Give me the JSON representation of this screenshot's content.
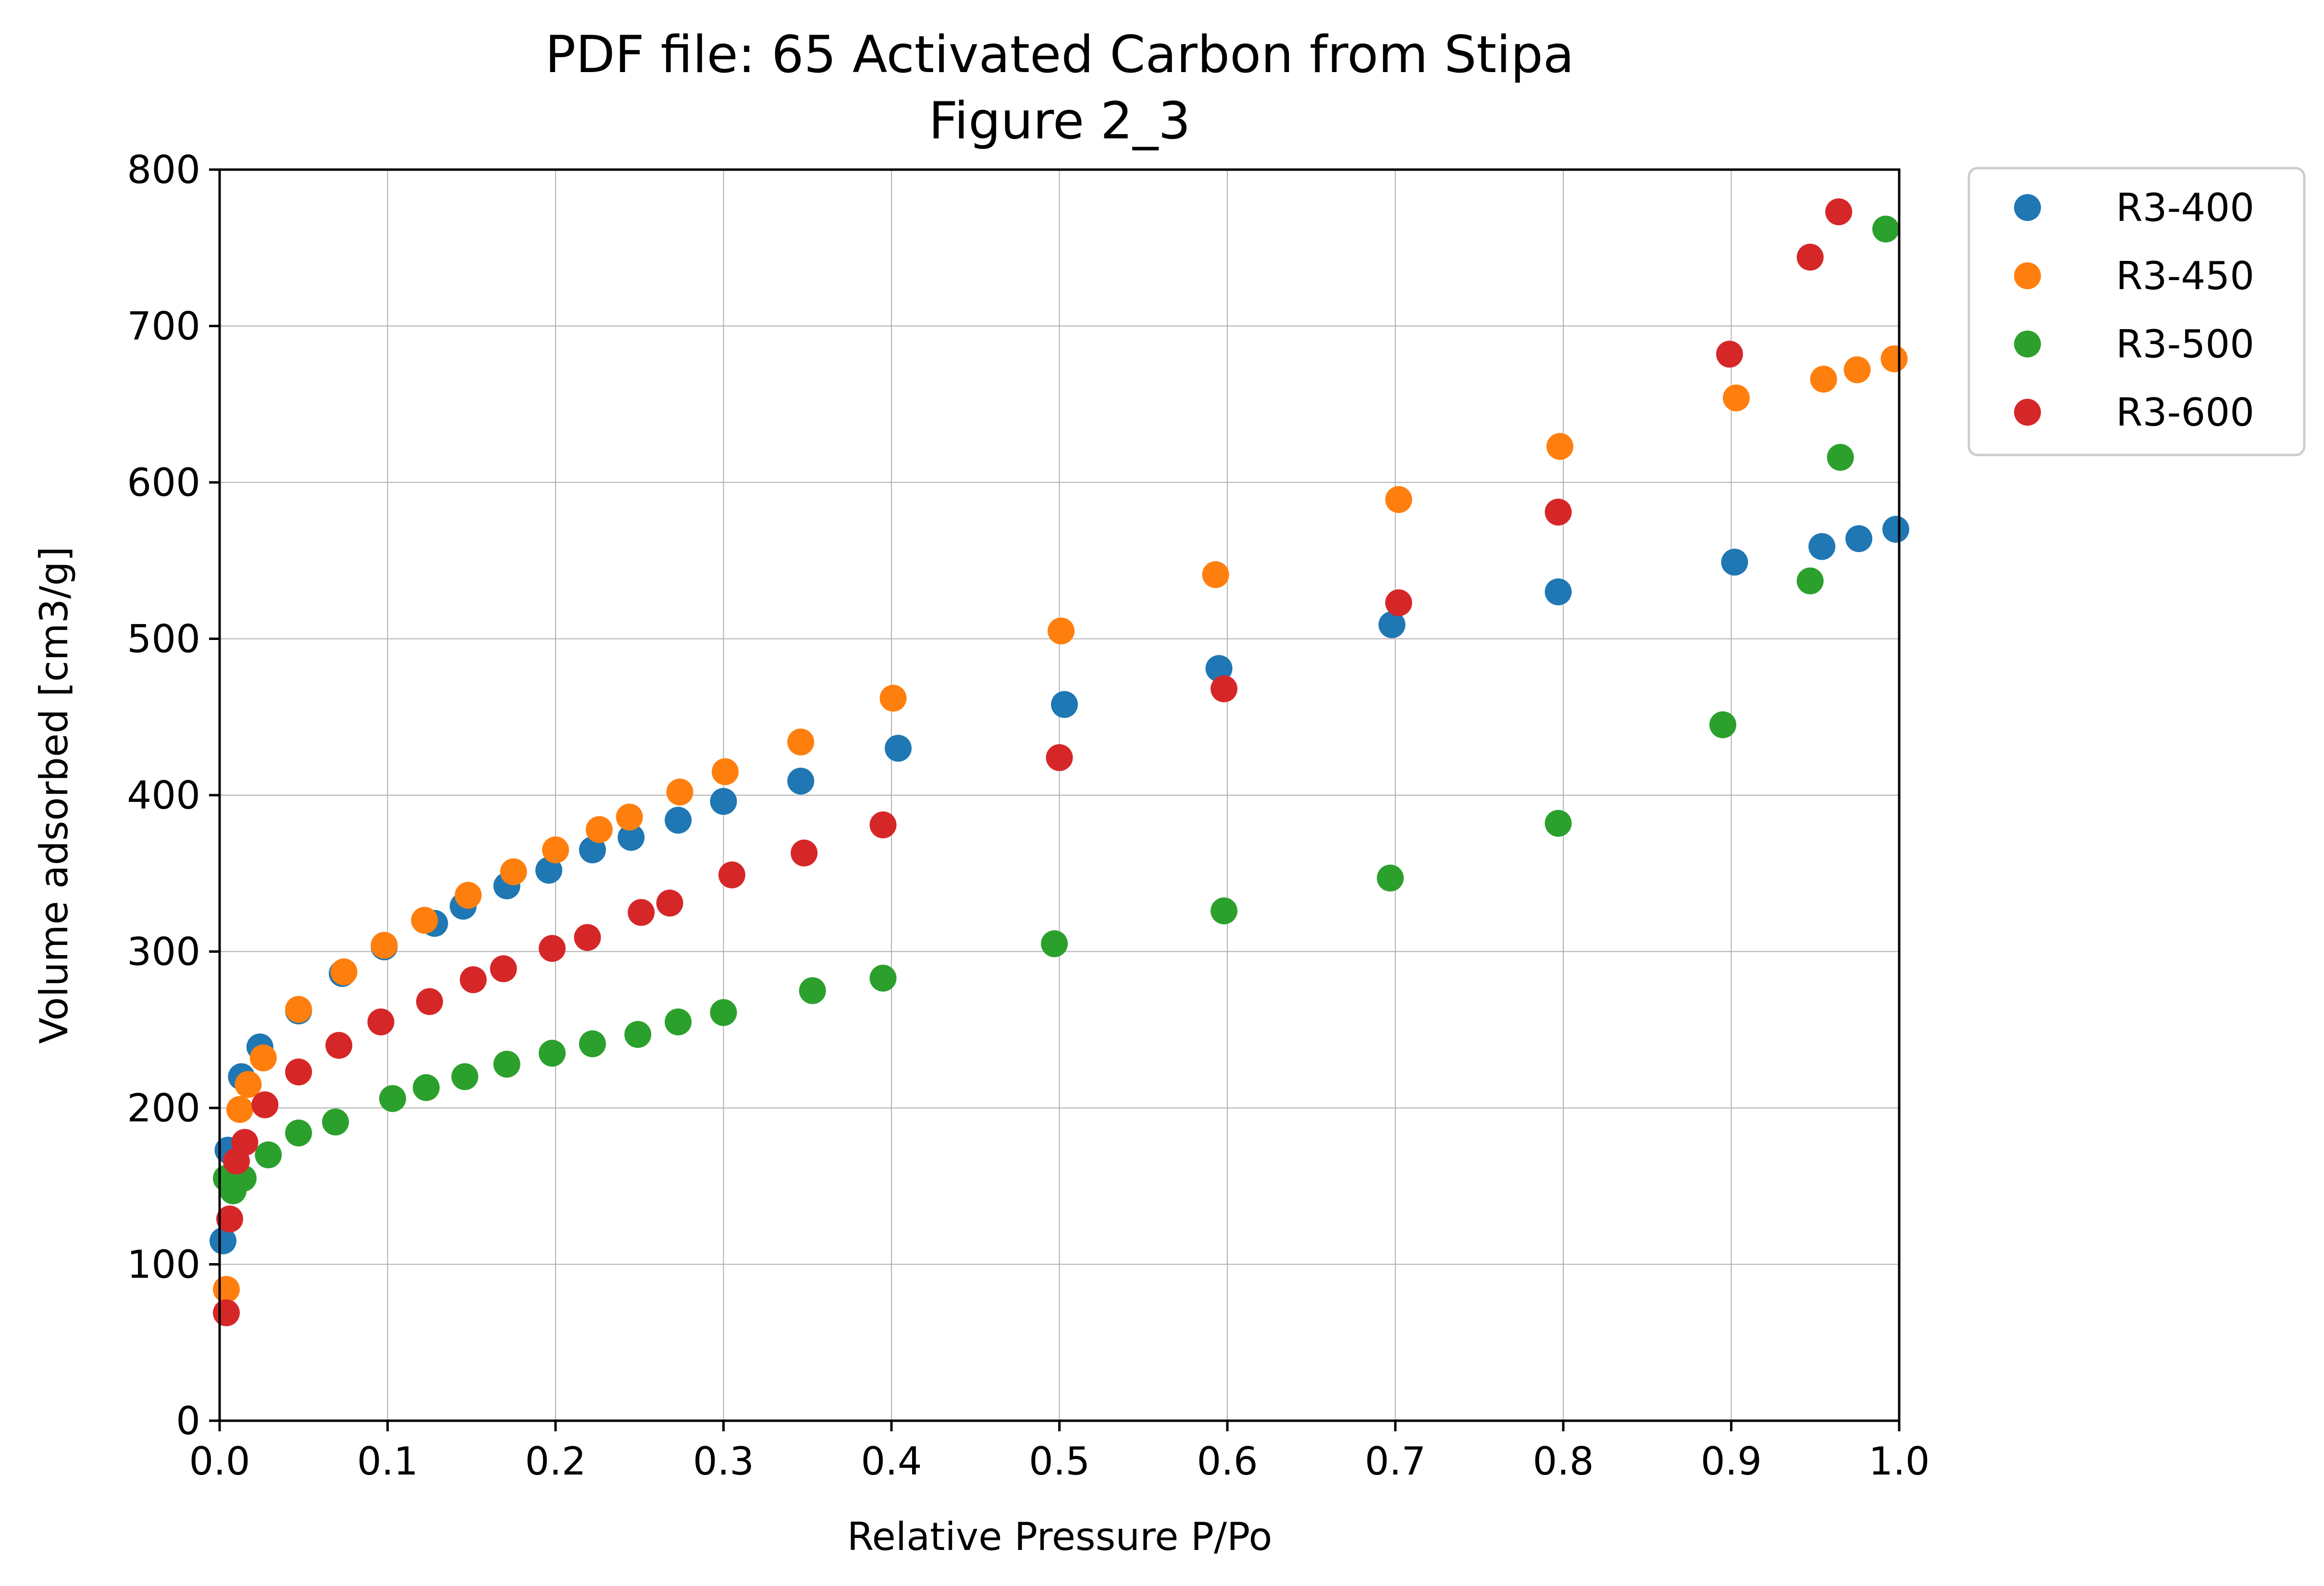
{
  "chart_data": {
    "type": "scatter",
    "title": "PDF file: 65 Activated Carbon from Stipa",
    "subtitle": "Figure 2_3",
    "xlabel": "Relative Pressure P/Po",
    "ylabel": "Volume adsorbed [cm3/g]",
    "xlim": [
      0.0,
      1.0
    ],
    "ylim": [
      0,
      800
    ],
    "xticks": [
      "0.0",
      "0.1",
      "0.2",
      "0.3",
      "0.4",
      "0.5",
      "0.6",
      "0.7",
      "0.8",
      "0.9",
      "1.0"
    ],
    "yticks": [
      "0",
      "100",
      "200",
      "300",
      "400",
      "500",
      "600",
      "700",
      "800"
    ],
    "grid": true,
    "legend_position": "outside-top-right",
    "series": [
      {
        "name": "R3-400",
        "color": "#1f77b4",
        "x": [
          0.002,
          0.005,
          0.013,
          0.024,
          0.047,
          0.073,
          0.098,
          0.128,
          0.145,
          0.171,
          0.196,
          0.222,
          0.245,
          0.273,
          0.3,
          0.346,
          0.404,
          0.503,
          0.595,
          0.698,
          0.797,
          0.902,
          0.954,
          0.976,
          0.998
        ],
        "y": [
          115,
          173,
          220,
          239,
          262,
          286,
          303,
          318,
          329,
          342,
          352,
          365,
          373,
          384,
          396,
          409,
          430,
          458,
          481,
          509,
          530,
          549,
          559,
          564,
          570
        ]
      },
      {
        "name": "R3-450",
        "color": "#ff7f0e",
        "x": [
          0.004,
          0.012,
          0.017,
          0.026,
          0.047,
          0.074,
          0.098,
          0.122,
          0.148,
          0.175,
          0.2,
          0.226,
          0.244,
          0.274,
          0.301,
          0.346,
          0.401,
          0.501,
          0.593,
          0.702,
          0.798,
          0.903,
          0.955,
          0.975,
          0.997
        ],
        "y": [
          84,
          199,
          215,
          232,
          263,
          287,
          304,
          320,
          336,
          351,
          365,
          378,
          386,
          402,
          415,
          434,
          462,
          505,
          541,
          589,
          623,
          654,
          666,
          672,
          679
        ]
      },
      {
        "name": "R3-500",
        "color": "#2ca02c",
        "x": [
          0.004,
          0.008,
          0.014,
          0.029,
          0.047,
          0.069,
          0.103,
          0.123,
          0.146,
          0.171,
          0.198,
          0.222,
          0.249,
          0.273,
          0.3,
          0.353,
          0.395,
          0.497,
          0.598,
          0.697,
          0.797,
          0.895,
          0.947,
          0.965,
          0.992
        ],
        "y": [
          155,
          147,
          155,
          170,
          184,
          191,
          206,
          213,
          220,
          228,
          235,
          241,
          247,
          255,
          261,
          275,
          283,
          305,
          326,
          347,
          382,
          445,
          537,
          616,
          762
        ]
      },
      {
        "name": "R3-600",
        "color": "#d62728",
        "x": [
          0.004,
          0.006,
          0.01,
          0.015,
          0.027,
          0.047,
          0.071,
          0.096,
          0.125,
          0.151,
          0.169,
          0.198,
          0.219,
          0.251,
          0.268,
          0.305,
          0.348,
          0.395,
          0.5,
          0.598,
          0.702,
          0.797,
          0.899,
          0.947,
          0.964
        ],
        "y": [
          69,
          129,
          166,
          178,
          202,
          223,
          240,
          255,
          268,
          282,
          289,
          302,
          309,
          325,
          331,
          349,
          363,
          381,
          424,
          468,
          523,
          581,
          682,
          744,
          773
        ]
      }
    ]
  }
}
